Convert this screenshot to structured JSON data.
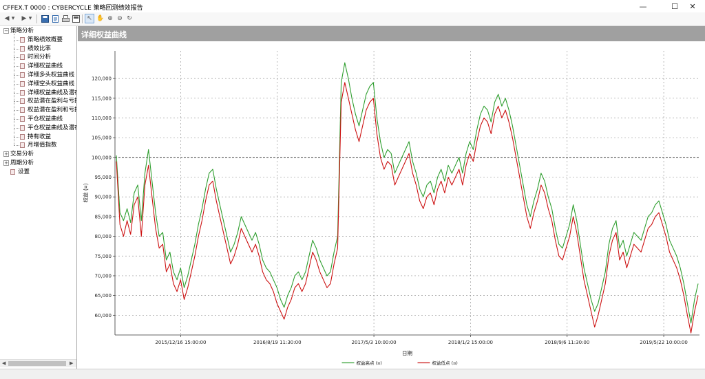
{
  "window": {
    "title": "CFFEX.T 0000 : CYBERCYCLE 策略回测绩效报告"
  },
  "sidebar": {
    "groups": [
      {
        "label": "策略分析",
        "expanded": true,
        "children": [
          "策略绩效概要",
          "绩效比率",
          "时间分析",
          "详细权益曲线",
          "详细多头权益曲线",
          "详细空头权益曲线",
          "详细权益曲线及潜在",
          "权益潜在盈利与亏损",
          "权益潜在盈利和亏损",
          "平仓权益曲线",
          "平仓权益曲线及潜在",
          "持有收益",
          "月增值指数"
        ]
      },
      {
        "label": "交易分析",
        "expanded": false,
        "children": []
      },
      {
        "label": "周期分析",
        "expanded": false,
        "children": []
      }
    ],
    "settings_label": "设置"
  },
  "chart_header": "详细权益曲线",
  "chart_data": {
    "type": "line",
    "title": "详细权益曲线",
    "xlabel": "日期",
    "ylabel": "权益 (¤)",
    "x_tick_labels": [
      "2015/12/16 15:00:00",
      "2016/8/19 11:30:00",
      "2017/5/3 10:00:00",
      "2018/1/2 15:00:00",
      "2018/9/6 11:30:00",
      "2019/5/22 10:00:00"
    ],
    "y_tick_labels": [
      "60,000",
      "65,000",
      "70,000",
      "75,000",
      "80,000",
      "85,000",
      "90,000",
      "95,000",
      "100,000",
      "105,000",
      "110,000",
      "115,000",
      "120,000"
    ],
    "ylim": [
      55000,
      127000
    ],
    "reference_line": 100000,
    "grid": true,
    "legend_position": "bottom-center",
    "series": [
      {
        "name": "权益高点 (¤)",
        "color": "#2e9e2e",
        "values": [
          100500,
          86000,
          84000,
          87000,
          83500,
          91000,
          93000,
          84000,
          96000,
          102000,
          94000,
          86000,
          80000,
          81000,
          74000,
          76000,
          71000,
          69000,
          72000,
          67000,
          70000,
          74000,
          78000,
          83000,
          87000,
          92000,
          96000,
          97000,
          92000,
          88000,
          84000,
          80000,
          76000,
          78000,
          81000,
          85000,
          83000,
          81000,
          79000,
          81000,
          78000,
          74000,
          72000,
          71000,
          69000,
          67000,
          64000,
          62000,
          65000,
          67000,
          70000,
          71000,
          69000,
          71000,
          75000,
          79000,
          77000,
          74000,
          72000,
          70000,
          71000,
          76000,
          80000,
          119000,
          124000,
          120000,
          115000,
          111000,
          108000,
          112000,
          116000,
          118000,
          119000,
          110000,
          104000,
          100000,
          102000,
          101000,
          96000,
          98000,
          100000,
          102000,
          104000,
          99000,
          96000,
          92000,
          90000,
          93000,
          94000,
          91000,
          95000,
          97000,
          94000,
          98000,
          96000,
          98000,
          100000,
          96000,
          101000,
          104000,
          102000,
          107000,
          111000,
          113000,
          112000,
          109000,
          114000,
          116000,
          113000,
          115000,
          112000,
          108000,
          103000,
          98000,
          93000,
          88000,
          85000,
          89000,
          92000,
          96000,
          94000,
          90000,
          87000,
          82000,
          78000,
          77000,
          80000,
          83000,
          88000,
          84000,
          78000,
          72000,
          68000,
          64000,
          61000,
          63000,
          67000,
          71000,
          78000,
          82000,
          84000,
          77000,
          79000,
          75000,
          78000,
          81000,
          80000,
          79000,
          82000,
          85000,
          86000,
          88000,
          89000,
          86000,
          83000,
          79000,
          77000,
          75000,
          72000,
          68000,
          63000,
          58000,
          64000,
          68000
        ]
      },
      {
        "name": "权益低点 (¤)",
        "color": "#cc1111",
        "values": [
          99000,
          83000,
          80000,
          84000,
          80500,
          88000,
          90000,
          80000,
          93000,
          98000,
          90000,
          82000,
          77000,
          78000,
          71000,
          73000,
          68000,
          66000,
          69000,
          64000,
          67000,
          71000,
          75000,
          80000,
          84000,
          89000,
          93000,
          94000,
          89000,
          85000,
          81000,
          77000,
          73000,
          75000,
          78000,
          82000,
          80000,
          78000,
          76000,
          78000,
          75000,
          71000,
          69000,
          68000,
          66000,
          63000,
          61000,
          59000,
          62000,
          64000,
          67000,
          68000,
          66000,
          68000,
          72000,
          76000,
          74000,
          71000,
          69000,
          67000,
          68000,
          73000,
          77000,
          114000,
          119000,
          115000,
          111000,
          107000,
          104000,
          108000,
          112000,
          114000,
          115000,
          106000,
          100000,
          97000,
          99000,
          98000,
          93000,
          95000,
          97000,
          99000,
          101000,
          96000,
          93000,
          89000,
          87000,
          90000,
          91000,
          88000,
          92000,
          94000,
          91000,
          95000,
          93000,
          95000,
          97000,
          93000,
          98000,
          101000,
          99000,
          104000,
          108000,
          110000,
          109000,
          106000,
          111000,
          113000,
          110000,
          112000,
          109000,
          105000,
          100000,
          95000,
          90000,
          85000,
          82000,
          86000,
          89000,
          93000,
          91000,
          87000,
          84000,
          79000,
          75000,
          74000,
          77000,
          80000,
          85000,
          81000,
          75000,
          69000,
          65000,
          61000,
          57000,
          60000,
          64000,
          68000,
          75000,
          79000,
          81000,
          74000,
          76000,
          72000,
          75000,
          78000,
          77000,
          76000,
          79000,
          82000,
          83000,
          85000,
          86000,
          83000,
          80000,
          76000,
          74000,
          72000,
          69000,
          65000,
          60000,
          55500,
          61000,
          65000
        ]
      }
    ]
  }
}
